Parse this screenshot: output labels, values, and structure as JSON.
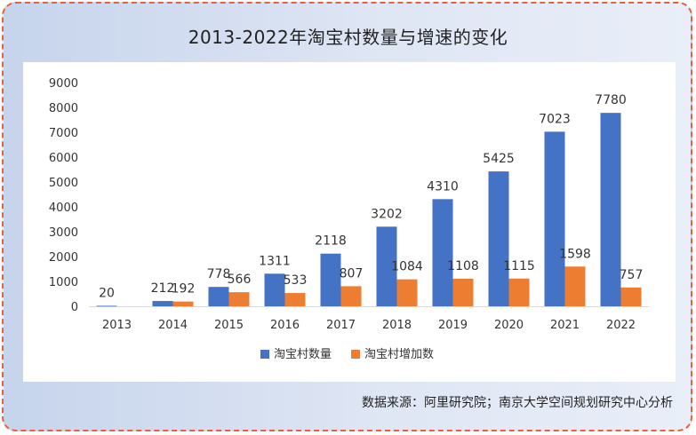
{
  "title": "2013-2022年淘宝村数量与增速的变化",
  "source": "数据来源：阿里研究院；南京大学空间规划研究中心分析",
  "colors": {
    "series_a": "#4472c4",
    "series_b": "#ed7d31",
    "axis": "#d9d9d9",
    "text": "#333333"
  },
  "chart_data": {
    "type": "bar",
    "title": "2013-2022年淘宝村数量与增速的变化",
    "xlabel": "",
    "ylabel": "",
    "ylim": [
      0,
      9000
    ],
    "yticks": [
      0,
      1000,
      2000,
      3000,
      4000,
      5000,
      6000,
      7000,
      8000,
      9000
    ],
    "grid": false,
    "legend_position": "bottom",
    "categories": [
      "2013",
      "2014",
      "2015",
      "2016",
      "2017",
      "2018",
      "2019",
      "2020",
      "2021",
      "2022"
    ],
    "series": [
      {
        "name": "淘宝村数量",
        "values": [
          20,
          212,
          778,
          1311,
          2118,
          3202,
          4310,
          5425,
          7023,
          7780
        ]
      },
      {
        "name": "淘宝村增加数",
        "values": [
          null,
          192,
          566,
          533,
          807,
          1084,
          1108,
          1115,
          1598,
          757
        ]
      }
    ]
  }
}
